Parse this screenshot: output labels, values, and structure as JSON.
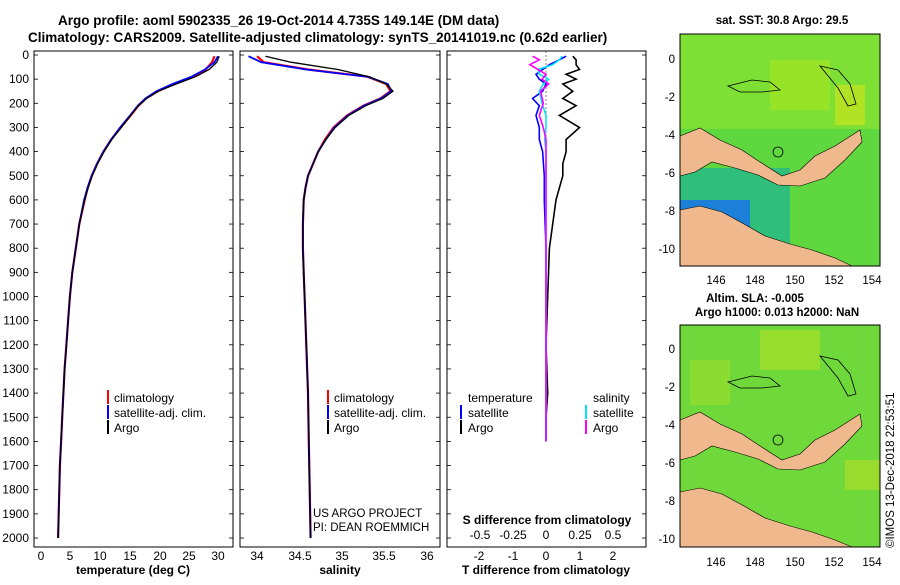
{
  "header": {
    "title_line1": "Argo profile: aoml 5902335_26 19-Oct-2014 4.735S 149.14E (DM data)",
    "title_line2": "Climatology: CARS2009. Satellite-adjusted climatology: synTS_20141019.nc (0.62d earlier)"
  },
  "colors": {
    "climatology": "#ff0000",
    "satellite": "#0000ff",
    "argo": "#000000",
    "sat_salinity": "#00e5ff",
    "argo_salinity": "#ff00ff",
    "land": "#f0b98d"
  },
  "depth_axis": {
    "ticks": [
      "0",
      "100",
      "200",
      "300",
      "400",
      "500",
      "600",
      "700",
      "800",
      "900",
      "1000",
      "1100",
      "1200",
      "1300",
      "1400",
      "1500",
      "1600",
      "1700",
      "1800",
      "1900",
      "2000"
    ]
  },
  "chart_data": [
    {
      "type": "line",
      "panel": "temperature",
      "xlabel": "temperature (deg C)",
      "xlim": [
        -2,
        31
      ],
      "ylim": [
        2070,
        0
      ],
      "xticks": [
        "0",
        "5",
        "10",
        "15",
        "20",
        "25",
        "30"
      ],
      "legend": {
        "labels": [
          "climatology",
          "satellite-adj. clim.",
          "Argo"
        ]
      },
      "series": [
        {
          "name": "climatology",
          "depth": [
            5,
            30,
            60,
            90,
            120,
            150,
            180,
            210,
            250,
            300,
            350,
            400,
            450,
            500,
            550,
            600,
            700,
            800,
            900,
            1000,
            1100,
            1200,
            1300,
            1400,
            1500,
            1600,
            1700,
            1800,
            1900,
            2000
          ],
          "values": [
            29.4,
            29.0,
            27.9,
            25.8,
            22.5,
            19.8,
            17.8,
            16.5,
            15.2,
            13.5,
            11.9,
            10.6,
            9.5,
            8.6,
            7.9,
            7.4,
            6.5,
            5.9,
            5.3,
            4.9,
            4.6,
            4.3,
            4.0,
            3.8,
            3.6,
            3.4,
            3.2,
            3.1,
            3.0,
            2.9
          ]
        },
        {
          "name": "satellite",
          "depth": [
            5,
            30,
            60,
            90,
            120,
            150,
            180,
            210,
            250,
            300,
            350,
            400,
            450,
            500,
            550,
            600,
            700,
            800,
            900,
            1000,
            1100,
            1200,
            1300,
            1400,
            1500,
            1600,
            1700,
            1800,
            1900,
            2000
          ],
          "values": [
            30.0,
            29.4,
            27.8,
            25.5,
            22.3,
            19.6,
            17.7,
            16.4,
            15.1,
            13.4,
            11.9,
            10.6,
            9.5,
            8.6,
            7.9,
            7.3,
            6.5,
            5.9,
            5.3,
            4.9,
            4.6,
            4.3,
            4.0,
            3.8,
            3.6,
            3.4,
            3.2,
            3.1,
            3.0,
            2.9
          ]
        },
        {
          "name": "Argo",
          "depth": [
            5,
            30,
            60,
            90,
            120,
            150,
            180,
            210,
            250,
            300,
            350,
            400,
            450,
            500,
            550,
            600,
            700,
            800,
            900,
            1000,
            1100,
            1200,
            1300,
            1400,
            1500,
            1600,
            1700,
            1800,
            1900,
            2000
          ],
          "values": [
            30.2,
            29.8,
            28.5,
            26.2,
            22.9,
            19.9,
            17.9,
            16.5,
            15.2,
            13.6,
            12.0,
            10.7,
            9.6,
            8.7,
            8.0,
            7.4,
            6.5,
            5.9,
            5.3,
            4.9,
            4.6,
            4.3,
            4.0,
            3.8,
            3.6,
            3.4,
            3.2,
            3.1,
            3.0,
            2.9
          ]
        }
      ]
    },
    {
      "type": "line",
      "panel": "salinity",
      "xlabel": "salinity",
      "xlim": [
        33.75,
        36.1
      ],
      "ylim": [
        2070,
        0
      ],
      "xticks": [
        "34",
        "34.5",
        "35",
        "35.5",
        "36"
      ],
      "legend": {
        "labels": [
          "climatology",
          "satellite-adj. clim.",
          "Argo"
        ]
      },
      "credit": [
        "US ARGO PROJECT",
        "PI: DEAN ROEMMICH"
      ],
      "series": [
        {
          "name": "climatology",
          "depth": [
            5,
            30,
            60,
            90,
            120,
            150,
            180,
            210,
            250,
            300,
            350,
            400,
            450,
            500,
            550,
            600,
            700,
            800,
            900,
            1000,
            1200,
            1400,
            1600,
            1800,
            2000
          ],
          "values": [
            34.0,
            34.08,
            34.6,
            35.3,
            35.52,
            35.57,
            35.45,
            35.25,
            35.06,
            34.9,
            34.8,
            34.72,
            34.66,
            34.6,
            34.57,
            34.55,
            34.54,
            34.54,
            34.55,
            34.56,
            34.58,
            34.6,
            34.61,
            34.62,
            34.63
          ]
        },
        {
          "name": "satellite",
          "depth": [
            5,
            30,
            60,
            90,
            120,
            150,
            180,
            210,
            250,
            300,
            350,
            400,
            450,
            500,
            550,
            600,
            700,
            800,
            900,
            1000,
            1200,
            1400,
            1600,
            1800,
            2000
          ],
          "values": [
            33.9,
            34.05,
            34.58,
            35.3,
            35.54,
            35.58,
            35.46,
            35.26,
            35.07,
            34.91,
            34.81,
            34.72,
            34.66,
            34.6,
            34.57,
            34.55,
            34.54,
            34.54,
            34.55,
            34.56,
            34.58,
            34.6,
            34.61,
            34.62,
            34.63
          ]
        },
        {
          "name": "Argo",
          "depth": [
            5,
            30,
            60,
            90,
            120,
            150,
            180,
            210,
            250,
            300,
            350,
            400,
            450,
            500,
            550,
            600,
            700,
            800,
            900,
            1000,
            1200,
            1400,
            1600,
            1800,
            2000
          ],
          "values": [
            34.1,
            34.4,
            34.95,
            35.32,
            35.52,
            35.6,
            35.48,
            35.28,
            35.08,
            34.92,
            34.81,
            34.72,
            34.66,
            34.6,
            34.57,
            34.55,
            34.54,
            34.54,
            34.55,
            34.56,
            34.58,
            34.6,
            34.61,
            34.62,
            34.63
          ]
        }
      ]
    },
    {
      "type": "line",
      "panel": "difference",
      "xlabel": "T difference from climatology",
      "xlabel_top": "S difference from climatology",
      "xlim": [
        -3,
        3
      ],
      "ylim": [
        2070,
        0
      ],
      "xticks": [
        "-2",
        "-1",
        "0",
        "1",
        "2"
      ],
      "xticks_top": [
        "-0.5",
        "-0.25",
        "0",
        "0.25",
        "0.5"
      ],
      "legend": {
        "col1_title": "temperature",
        "col2_title": "salinity",
        "labels": [
          "satellite",
          "Argo",
          "satellite",
          "Argo"
        ]
      },
      "series": [
        {
          "name": "T satellite",
          "depth": [
            5,
            20,
            40,
            60,
            80,
            100,
            120,
            150,
            180,
            210,
            250,
            300,
            350,
            400,
            500,
            600,
            800,
            1000,
            1400,
            1600
          ],
          "values": [
            0.6,
            0.4,
            0.1,
            -0.1,
            -0.3,
            -0.2,
            0.0,
            -0.1,
            -0.4,
            -0.2,
            -0.3,
            -0.2,
            -0.2,
            -0.1,
            -0.05,
            -0.05,
            0.0,
            0.0,
            0.0,
            0.0
          ]
        },
        {
          "name": "T Argo",
          "depth": [
            5,
            20,
            40,
            60,
            80,
            100,
            120,
            150,
            180,
            210,
            250,
            300,
            350,
            400,
            450,
            500,
            600,
            700,
            800,
            1000,
            1200,
            1400,
            1500,
            1600
          ],
          "values": [
            0.8,
            0.9,
            0.9,
            1.0,
            0.6,
            0.9,
            0.5,
            0.8,
            0.5,
            0.9,
            0.4,
            1.0,
            0.6,
            0.6,
            0.5,
            0.5,
            0.3,
            0.2,
            0.1,
            0.05,
            0.0,
            0.05,
            0.0,
            0.0
          ]
        },
        {
          "name": "S satellite",
          "depth": [
            5,
            20,
            40,
            60,
            80,
            100,
            120,
            150,
            200,
            250,
            300,
            350,
            400,
            500,
            600,
            700,
            800,
            1000,
            1200,
            1400,
            1600
          ],
          "values": [
            0.12,
            0.1,
            0.05,
            -0.06,
            -0.05,
            0.02,
            -0.02,
            -0.05,
            -0.03,
            0.0,
            0.0,
            -0.01,
            0.0,
            0.0,
            0.0,
            0.0,
            0.0,
            0.0,
            0.0,
            0.0,
            0.0
          ]
        },
        {
          "name": "S Argo",
          "depth": [
            5,
            20,
            40,
            60,
            80,
            100,
            120,
            150,
            200,
            250,
            300,
            350,
            400,
            500,
            600,
            700,
            800,
            1000,
            1400,
            1600
          ],
          "values": [
            -0.1,
            -0.05,
            -0.12,
            -0.06,
            0.0,
            -0.03,
            0.02,
            -0.04,
            -0.02,
            -0.05,
            -0.02,
            0.0,
            0.0,
            0.0,
            0.0,
            0.0,
            0.0,
            0.0,
            0.0,
            0.0
          ]
        }
      ]
    }
  ],
  "map_sst": {
    "title": "sat. SST: 30.8 Argo: 29.5",
    "yticks": [
      "0",
      "-2",
      "-4",
      "-6",
      "-8",
      "-10"
    ],
    "xticks": [
      "146",
      "148",
      "150",
      "152",
      "154"
    ]
  },
  "map_sla": {
    "title_line1": "Altim. SLA: -0.005",
    "title_line2": "Argo h1000: 0.013 h2000: NaN",
    "yticks": [
      "0",
      "-2",
      "-4",
      "-6",
      "-8",
      "-10"
    ],
    "xticks": [
      "146",
      "148",
      "150",
      "152",
      "154"
    ]
  },
  "footer": {
    "timestamp": "©IMOS 13-Dec-2018 22:53:51"
  }
}
